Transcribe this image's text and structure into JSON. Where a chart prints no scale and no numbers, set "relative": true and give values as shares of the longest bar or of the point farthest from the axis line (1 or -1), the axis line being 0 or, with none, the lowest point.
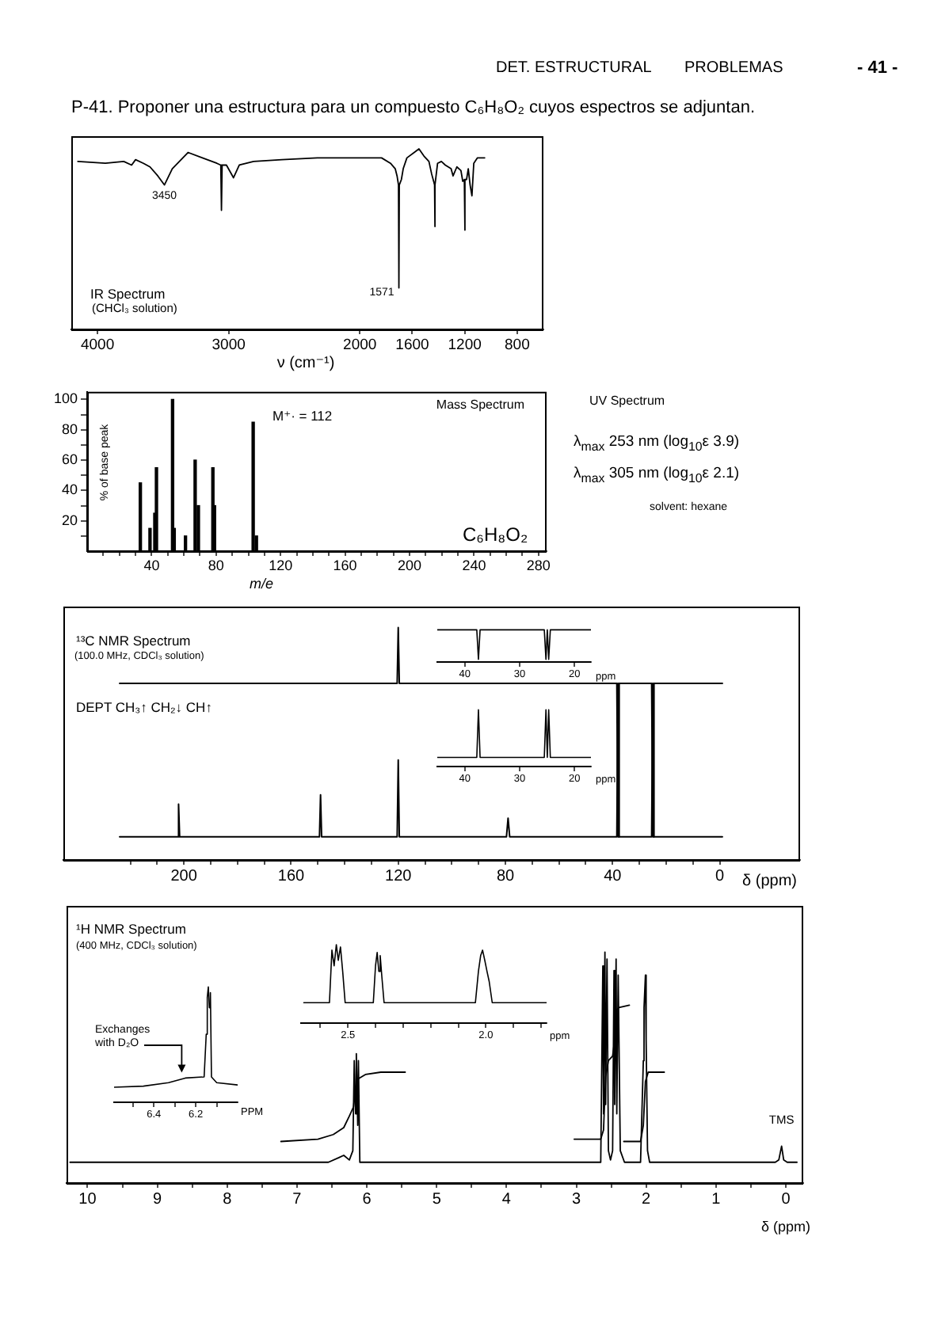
{
  "chart_data": [
    {
      "type": "other",
      "title": "P-41. Proponer una estructura para un compuesto C₆H₈O₂ cuyos espectros se adjuntan.",
      "annotations": [
        "DET. ESTRUCTURAL",
        "PROBLEMAS",
        "- 41 -"
      ]
    },
    {
      "type": "line",
      "title": "IR Spectrum",
      "subtitle": "(CHCl₃ solution)",
      "xlabel": "ν (cm⁻¹)",
      "relative": true,
      "marker": "none",
      "xlim": [
        4200,
        600
      ],
      "xticks": [
        4000,
        3000,
        2000,
        1600,
        1200,
        800
      ],
      "series": [
        {
          "color": "#000000",
          "x": [
            4150,
            3940,
            3800,
            3740,
            3710,
            3650,
            3600,
            3540,
            3490,
            3430,
            3310,
            3200,
            3090,
            3060,
            3055,
            3050,
            3017,
            2963,
            2919,
            2810,
            2594,
            2324,
            1973,
            1834,
            1766,
            1730,
            1716,
            1705,
            1702,
            1699,
            1683,
            1669,
            1641,
            1585,
            1549,
            1511,
            1473,
            1452,
            1437,
            1430,
            1428,
            1426,
            1407,
            1378,
            1348,
            1304,
            1289,
            1260,
            1229,
            1215,
            1203,
            1200,
            1197,
            1186,
            1173,
            1159,
            1145,
            1131,
            1103,
            1048
          ],
          "values": [
            0.93,
            0.92,
            0.93,
            0.91,
            0.94,
            0.92,
            0.9,
            0.85,
            0.8,
            0.89,
            0.98,
            0.95,
            0.92,
            0.91,
            0.66,
            0.91,
            0.91,
            0.84,
            0.91,
            0.93,
            0.94,
            0.95,
            0.95,
            0.95,
            0.92,
            0.89,
            0.85,
            0.8,
            0.23,
            0.8,
            0.83,
            0.89,
            0.95,
            0.98,
            1.0,
            0.96,
            0.93,
            0.86,
            0.82,
            0.8,
            0.57,
            0.8,
            0.92,
            0.93,
            0.91,
            0.89,
            0.85,
            0.9,
            0.88,
            0.82,
            0.83,
            0.55,
            0.83,
            0.83,
            0.89,
            0.8,
            0.74,
            0.92,
            0.95,
            0.95
          ]
        }
      ],
      "annotations": [
        {
          "text": "3450",
          "x": 3490,
          "y": 0.8
        },
        {
          "text": "1571",
          "x": 1702,
          "y": 0.23
        }
      ]
    },
    {
      "type": "bar",
      "title": "Mass Spectrum",
      "xlabel": "m/e",
      "ylabel": "% of base peak",
      "color": "#000000",
      "x": [
        33,
        39,
        42,
        43,
        53,
        54,
        61,
        67,
        69,
        78,
        79,
        103,
        105
      ],
      "values": [
        45,
        15,
        25,
        55,
        100,
        15,
        10,
        60,
        30,
        55,
        30,
        85,
        10
      ],
      "xlim": [
        0,
        285
      ],
      "xticks": [
        {
          "value": 10,
          "label": null
        },
        {
          "value": 20,
          "label": null
        },
        {
          "value": 30,
          "label": null
        },
        40,
        {
          "value": 50,
          "label": null
        },
        {
          "value": 60,
          "label": null
        },
        {
          "value": 70,
          "label": null
        },
        80,
        {
          "value": 90,
          "label": null
        },
        {
          "value": 100,
          "label": null
        },
        {
          "value": 110,
          "label": null
        },
        120,
        {
          "value": 130,
          "label": null
        },
        {
          "value": 140,
          "label": null
        },
        {
          "value": 150,
          "label": null
        },
        160,
        {
          "value": 170,
          "label": null
        },
        {
          "value": 180,
          "label": null
        },
        {
          "value": 190,
          "label": null
        },
        200,
        {
          "value": 210,
          "label": null
        },
        {
          "value": 220,
          "label": null
        },
        {
          "value": 230,
          "label": null
        },
        240,
        {
          "value": 250,
          "label": null
        },
        {
          "value": 260,
          "label": null
        },
        {
          "value": 270,
          "label": null
        },
        280
      ],
      "ylim": [
        0,
        105
      ],
      "yticks": [
        {
          "value": 10,
          "label": null
        },
        20,
        {
          "value": 30,
          "label": null
        },
        40,
        {
          "value": 50,
          "label": null
        },
        60,
        {
          "value": 70,
          "label": null
        },
        80,
        {
          "value": 90,
          "label": null
        },
        100
      ],
      "annotations": [
        "M⁺· = 112",
        "C₆H₈O₂"
      ]
    },
    {
      "type": "other",
      "title": "UV Spectrum",
      "annotations": [
        "λ$_{max}$ 253 nm (log$_{10}$ε 3.9)",
        "λ$_{max}$ 305 nm (log$_{10}$ε 2.1)",
        "solvent: hexane"
      ]
    },
    {
      "type": "line",
      "title": "¹³C NMR Spectrum",
      "subtitle": "(100.0 MHz, CDCl₃ solution)",
      "xlabel": "δ (ppm)",
      "relative": true,
      "marker": "none",
      "xlim": [
        245,
        -30
      ],
      "xticks": [
        {
          "value": 220,
          "label": null
        },
        {
          "value": 210,
          "label": null
        },
        200,
        {
          "value": 190,
          "label": null
        },
        {
          "value": 180,
          "label": null
        },
        {
          "value": 170,
          "label": null
        },
        160,
        {
          "value": 150,
          "label": null
        },
        {
          "value": 140,
          "label": null
        },
        {
          "value": 130,
          "label": null
        },
        120,
        {
          "value": 110,
          "label": null
        },
        {
          "value": 100,
          "label": null
        },
        {
          "value": 90,
          "label": null
        },
        80,
        {
          "value": 70,
          "label": null
        },
        {
          "value": 60,
          "label": null
        },
        {
          "value": 50,
          "label": null
        },
        40,
        {
          "value": 30,
          "label": null
        },
        {
          "value": 20,
          "label": null
        },
        {
          "value": 10,
          "label": null
        },
        0
      ],
      "series": [
        {
          "color": "#000000",
          "x": [
            224,
            120.4,
            120,
            119.6,
            38.4,
            38,
            37.6,
            25.4,
            25,
            24.6,
            -1
          ],
          "values": [
            0.76,
            0.76,
            1,
            0.76,
            0.76,
            0.1,
            0.76,
            0.76,
            0.1,
            0.76,
            0.76
          ]
        },
        {
          "color": "#000000",
          "x": [
            224,
            202.4,
            202,
            201.6,
            149.4,
            149,
            148.6,
            120.4,
            120,
            119.6,
            79.6,
            79,
            78.4,
            38.4,
            38,
            37.6,
            25.4,
            25,
            24.6,
            -1
          ],
          "values": [
            0.1,
            0.1,
            0.24,
            0.1,
            0.1,
            0.28,
            0.1,
            0.1,
            0.43,
            0.1,
            0.1,
            0.18,
            0.1,
            0.1,
            0.76,
            0.1,
            0.1,
            0.76,
            0.1,
            0.1
          ]
        }
      ],
      "annotations": [
        "DEPT CH₃↑ CH₂↓ CH↑"
      ]
    },
    {
      "type": "line",
      "xlabel": "ppm",
      "relative": true,
      "marker": "none",
      "xlim": [
        45,
        17
      ],
      "xticks": [
        40,
        30,
        20
      ],
      "series": [
        {
          "color": "#000000",
          "x": [
            45,
            37.8,
            37.5,
            37.2,
            25.5,
            25.2,
            24.95,
            24.7,
            24.4,
            17
          ],
          "values": [
            1,
            1,
            0.08,
            1,
            1,
            0.08,
            1,
            0.08,
            1,
            1
          ]
        }
      ]
    },
    {
      "type": "line",
      "xlabel": "ppm",
      "relative": true,
      "marker": "none",
      "xlim": [
        45,
        17
      ],
      "xticks": [
        40,
        30,
        20
      ],
      "series": [
        {
          "color": "#000000",
          "x": [
            45,
            37.8,
            37.5,
            37.2,
            25.5,
            25.2,
            24.95,
            24.7,
            24.4,
            17
          ],
          "values": [
            0.16,
            0.16,
            1,
            0.16,
            0.16,
            1,
            0.16,
            1,
            0.16,
            0.16
          ]
        }
      ]
    },
    {
      "type": "line",
      "title": "¹H NMR Spectrum",
      "subtitle": "(400 MHz, CDCl₃ solution)",
      "xlabel": "δ (ppm)",
      "relative": true,
      "marker": "none",
      "xlim": [
        10.3,
        -0.25
      ],
      "xticks": [
        10,
        {
          "value": 9.5,
          "label": null
        },
        9,
        {
          "value": 8.5,
          "label": null
        },
        8,
        {
          "value": 7.5,
          "label": null
        },
        7,
        {
          "value": 6.5,
          "label": null
        },
        6,
        {
          "value": 5.5,
          "label": null
        },
        5,
        {
          "value": 4.5,
          "label": null
        },
        4,
        {
          "value": 3.5,
          "label": null
        },
        3,
        {
          "value": 2.5,
          "label": null
        },
        2,
        {
          "value": 1.5,
          "label": null
        },
        1,
        {
          "value": 0.5,
          "label": null
        },
        0
      ],
      "series": [
        {
          "color": "#000000",
          "x": [
            10.25,
            6.55,
            6.4,
            6.33,
            6.25,
            6.2,
            6.18,
            6.16,
            6.15,
            6.13,
            6.12,
            6.1,
            2.77,
            2.65,
            2.62,
            2.61,
            2.59,
            2.58,
            2.56,
            2.54,
            2.51,
            2.48,
            2.46,
            2.45,
            2.43,
            2.42,
            2.4,
            2.37,
            2.31,
            2.08,
            2.04,
            2.03,
            2.01,
            2,
            1.98,
            1.95,
            0.15,
            0.1,
            0.06,
            0.03,
            -0.02,
            -0.16
          ],
          "values": [
            0.09,
            0.09,
            0.11,
            0.12,
            0.1,
            0.14,
            0.53,
            0.3,
            0.56,
            0.25,
            0.53,
            0.09,
            0.09,
            0.09,
            0.94,
            0.3,
            1,
            0.34,
            0.97,
            0.14,
            0.1,
            0.14,
            0.92,
            0.34,
            0.97,
            0.3,
            0.9,
            0.14,
            0.09,
            0.09,
            0.53,
            0.76,
            0.9,
            0.62,
            0.14,
            0.09,
            0.09,
            0.1,
            0.16,
            0.1,
            0.09,
            0.09
          ]
        },
        {
          "color": "#000000",
          "x": [
            7.23,
            6.7,
            6.48,
            6.33,
            6.25,
            6.19,
            6.16,
            6.13,
            6.02,
            5.8,
            5.45
          ],
          "values": [
            0.18,
            0.19,
            0.21,
            0.24,
            0.29,
            0.33,
            0.41,
            0.45,
            0.47,
            0.48,
            0.48
          ]
        },
        {
          "color": "#000000",
          "x": [
            3.03,
            2.65,
            2.61,
            2.58,
            2.54,
            2.48,
            2.45,
            2.42,
            2.39,
            2.24
          ],
          "values": [
            0.19,
            0.19,
            0.23,
            0.46,
            0.53,
            0.55,
            0.62,
            0.75,
            0.76,
            0.77
          ]
        },
        {
          "color": "#000000",
          "x": [
            2.32,
            2.08,
            2.04,
            2.01,
            1.97,
            1.74
          ],
          "values": [
            0.18,
            0.18,
            0.25,
            0.44,
            0.48,
            0.48
          ]
        }
      ],
      "annotations": [
        {
          "text": "TMS",
          "x": 0.06,
          "y": 0.16
        }
      ]
    },
    {
      "type": "line",
      "xlabel": "ppm",
      "relative": true,
      "marker": "none",
      "xlim": [
        2.67,
        1.78
      ],
      "xticks": [
        {
          "value": 2.6,
          "label": null
        },
        2.5,
        {
          "value": 2.4,
          "label": null
        },
        {
          "value": 2.3,
          "label": null
        },
        {
          "value": 2.2,
          "label": null
        },
        {
          "value": 2.1,
          "label": null
        },
        {
          "value": 2,
          "label": "2.0"
        },
        {
          "value": 1.9,
          "label": null
        },
        {
          "value": 1.8,
          "label": null
        }
      ],
      "series": [
        {
          "color": "#000000",
          "x": [
            2.66,
            2.567,
            2.558,
            2.55,
            2.542,
            2.535,
            2.527,
            2.519,
            2.51,
            2.408,
            2.4,
            2.394,
            2.388,
            2.383,
            2.377,
            2.369,
            2.038,
            2.027,
            2.019,
            2.012,
            2.004,
            1.996,
            1.988,
            1.977,
            1.78
          ],
          "values": [
            0.26,
            0.26,
            0.93,
            0.73,
            1,
            0.8,
            0.97,
            0.66,
            0.26,
            0.26,
            0.73,
            0.9,
            0.66,
            0.86,
            0.59,
            0.26,
            0.26,
            0.66,
            0.86,
            0.93,
            0.8,
            0.66,
            0.53,
            0.26,
            0.26
          ]
        }
      ]
    },
    {
      "type": "line",
      "xlabel": "PPM",
      "relative": true,
      "marker": "none",
      "xlim": [
        6.59,
        6.0
      ],
      "xticks": [
        {
          "value": 6.5,
          "label": null
        },
        6.4,
        {
          "value": 6.3,
          "label": null
        },
        6.2,
        {
          "value": 6.1,
          "label": null
        }
      ],
      "series": [
        {
          "color": "#000000",
          "x": [
            6.59,
            6.45,
            6.33,
            6.25,
            6.16,
            6.15,
            6.145,
            6.14,
            6.135,
            6.13,
            6.125,
            6.1,
            6.0
          ],
          "values": [
            0.13,
            0.14,
            0.17,
            0.21,
            0.22,
            0.59,
            0.91,
            1,
            0.82,
            0.95,
            0.22,
            0.17,
            0.15
          ]
        }
      ],
      "annotations": [
        {
          "text": "Exchanges with D₂O",
          "x": 6.27,
          "y": 0.21
        }
      ]
    }
  ]
}
